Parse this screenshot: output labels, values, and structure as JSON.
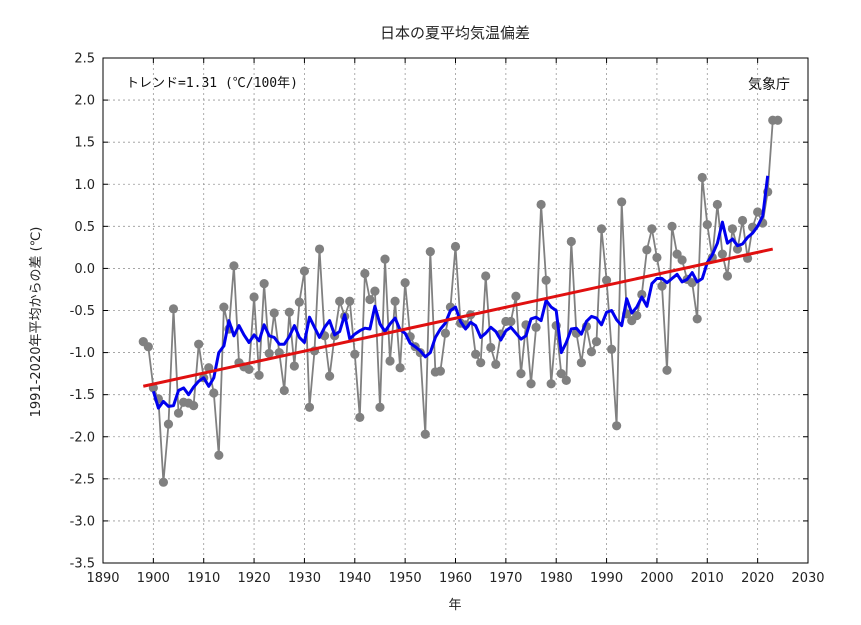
{
  "chart_data": {
    "type": "line",
    "title": "日本の夏平均気温偏差",
    "xlabel": "年",
    "ylabel": "1991-2020年平均からの差 (℃)",
    "annotation": "トレンド=1.31 (℃/100年)",
    "source": "気象庁",
    "xlim": [
      1890,
      2030
    ],
    "ylim": [
      -3.5,
      2.5
    ],
    "xticks": [
      1890,
      1900,
      1910,
      1920,
      1930,
      1940,
      1950,
      1960,
      1970,
      1980,
      1990,
      2000,
      2010,
      2020,
      2030
    ],
    "yticks": [
      -3.5,
      -3.0,
      -2.5,
      -2.0,
      -1.5,
      -1.0,
      -0.5,
      0.0,
      0.5,
      1.0,
      1.5,
      2.0,
      2.5
    ],
    "ytick_labels": [
      "-3.5",
      "-3.0",
      "-2.5",
      "-2.0",
      "-1.5",
      "-1.0",
      "-0.5",
      "0.0",
      "0.5",
      "1.0",
      "1.5",
      "2.0",
      "2.5"
    ],
    "grid": true,
    "colors": {
      "annual": "#808080",
      "moving_average": "#0000ee",
      "trend": "#e01010"
    },
    "series": [
      {
        "kind": "annual",
        "x": [
          1898,
          1899,
          1900,
          1901,
          1902,
          1903,
          1904,
          1905,
          1906,
          1907,
          1908,
          1909,
          1910,
          1911,
          1912,
          1913,
          1914,
          1915,
          1916,
          1917,
          1918,
          1919,
          1920,
          1921,
          1922,
          1923,
          1924,
          1925,
          1926,
          1927,
          1928,
          1929,
          1930,
          1931,
          1932,
          1933,
          1934,
          1935,
          1936,
          1937,
          1938,
          1939,
          1940,
          1941,
          1942,
          1943,
          1944,
          1945,
          1946,
          1947,
          1948,
          1949,
          1950,
          1951,
          1952,
          1953,
          1954,
          1955,
          1956,
          1957,
          1958,
          1959,
          1960,
          1961,
          1962,
          1963,
          1964,
          1965,
          1966,
          1967,
          1968,
          1969,
          1970,
          1971,
          1972,
          1973,
          1974,
          1975,
          1976,
          1977,
          1978,
          1979,
          1980,
          1981,
          1982,
          1983,
          1984,
          1985,
          1986,
          1987,
          1988,
          1989,
          1990,
          1991,
          1992,
          1993,
          1994,
          1995,
          1996,
          1997,
          1998,
          1999,
          2000,
          2001,
          2002,
          2003,
          2004,
          2005,
          2006,
          2007,
          2008,
          2009,
          2010,
          2011,
          2012,
          2013,
          2014,
          2015,
          2016,
          2017,
          2018,
          2019,
          2020,
          2021,
          2022,
          2023,
          2024
        ],
        "values": [
          -0.87,
          -0.93,
          -1.42,
          -1.55,
          -2.54,
          -1.85,
          -0.48,
          -1.72,
          -1.59,
          -1.6,
          -1.63,
          -0.9,
          -1.3,
          -1.18,
          -1.48,
          -2.22,
          -0.46,
          -0.72,
          0.03,
          -1.12,
          -1.17,
          -1.2,
          -0.34,
          -1.27,
          -0.18,
          -1.01,
          -0.53,
          -1.0,
          -1.45,
          -0.52,
          -1.16,
          -0.4,
          -0.03,
          -1.65,
          -0.98,
          0.23,
          -0.8,
          -1.28,
          -0.8,
          -0.39,
          -0.57,
          -0.39,
          -1.02,
          -1.77,
          -0.06,
          -0.37,
          -0.27,
          -1.65,
          0.11,
          -1.1,
          -0.39,
          -1.18,
          -0.17,
          -0.81,
          -0.93,
          -1.0,
          -1.97,
          0.2,
          -1.23,
          -1.22,
          -0.77,
          -0.46,
          0.26,
          -0.65,
          -0.67,
          -0.55,
          -1.02,
          -1.12,
          -0.09,
          -0.94,
          -1.14,
          -0.78,
          -0.63,
          -0.63,
          -0.33,
          -1.25,
          -0.67,
          -1.37,
          -0.7,
          0.76,
          -0.14,
          -1.37,
          -0.68,
          -1.25,
          -1.33,
          0.32,
          -0.77,
          -1.12,
          -0.69,
          -0.99,
          -0.87,
          0.47,
          -0.14,
          -0.96,
          -1.87,
          0.79,
          -0.54,
          -0.62,
          -0.56,
          -0.31,
          0.22,
          0.47,
          0.13,
          -0.21,
          -1.21,
          0.5,
          0.17,
          0.1,
          -0.13,
          -0.17,
          -0.6,
          1.08,
          0.52,
          0.13,
          0.76,
          0.17,
          -0.09,
          0.47,
          0.23,
          0.57,
          0.12,
          0.49,
          0.67,
          0.54,
          0.91,
          1.76,
          1.76
        ]
      },
      {
        "kind": "moving_average",
        "x": [
          1900,
          1901,
          1902,
          1903,
          1904,
          1905,
          1906,
          1907,
          1908,
          1909,
          1910,
          1911,
          1912,
          1913,
          1914,
          1915,
          1916,
          1917,
          1918,
          1919,
          1920,
          1921,
          1922,
          1923,
          1924,
          1925,
          1926,
          1927,
          1928,
          1929,
          1930,
          1931,
          1932,
          1933,
          1934,
          1935,
          1936,
          1937,
          1938,
          1939,
          1940,
          1941,
          1942,
          1943,
          1944,
          1945,
          1946,
          1947,
          1948,
          1949,
          1950,
          1951,
          1952,
          1953,
          1954,
          1955,
          1956,
          1957,
          1958,
          1959,
          1960,
          1961,
          1962,
          1963,
          1964,
          1965,
          1966,
          1967,
          1968,
          1969,
          1970,
          1971,
          1972,
          1973,
          1974,
          1975,
          1976,
          1977,
          1978,
          1979,
          1980,
          1981,
          1982,
          1983,
          1984,
          1985,
          1986,
          1987,
          1988,
          1989,
          1990,
          1991,
          1992,
          1993,
          1994,
          1995,
          1996,
          1997,
          1998,
          1999,
          2000,
          2001,
          2002,
          2003,
          2004,
          2005,
          2006,
          2007,
          2008,
          2009,
          2010,
          2011,
          2012,
          2013,
          2014,
          2015,
          2016,
          2017,
          2018,
          2019,
          2020,
          2021,
          2022
        ],
        "values": [
          -1.46,
          -1.66,
          -1.58,
          -1.64,
          -1.63,
          -1.45,
          -1.42,
          -1.5,
          -1.41,
          -1.34,
          -1.3,
          -1.4,
          -1.3,
          -1.0,
          -0.92,
          -0.62,
          -0.8,
          -0.68,
          -0.79,
          -0.88,
          -0.79,
          -0.86,
          -0.67,
          -0.8,
          -0.82,
          -0.9,
          -0.9,
          -0.81,
          -0.68,
          -0.82,
          -0.88,
          -0.58,
          -0.7,
          -0.82,
          -0.7,
          -0.62,
          -0.79,
          -0.75,
          -0.55,
          -0.84,
          -0.78,
          -0.74,
          -0.71,
          -0.72,
          -0.45,
          -0.66,
          -0.75,
          -0.66,
          -0.59,
          -0.73,
          -0.77,
          -0.89,
          -0.93,
          -0.98,
          -1.05,
          -1.0,
          -0.82,
          -0.72,
          -0.65,
          -0.5,
          -0.46,
          -0.63,
          -0.72,
          -0.64,
          -0.68,
          -0.82,
          -0.77,
          -0.7,
          -0.75,
          -0.85,
          -0.74,
          -0.7,
          -0.77,
          -0.84,
          -0.8,
          -0.6,
          -0.58,
          -0.62,
          -0.38,
          -0.46,
          -0.5,
          -1.0,
          -0.88,
          -0.72,
          -0.71,
          -0.78,
          -0.63,
          -0.57,
          -0.59,
          -0.67,
          -0.52,
          -0.5,
          -0.61,
          -0.68,
          -0.36,
          -0.53,
          -0.46,
          -0.34,
          -0.45,
          -0.18,
          -0.12,
          -0.12,
          -0.17,
          -0.12,
          -0.07,
          -0.16,
          -0.13,
          -0.05,
          -0.16,
          -0.12,
          0.07,
          0.16,
          0.3,
          0.55,
          0.3,
          0.35,
          0.27,
          0.29,
          0.37,
          0.42,
          0.5,
          0.62,
          1.1
        ]
      },
      {
        "kind": "trend",
        "x": [
          1898,
          2023
        ],
        "values": [
          -1.4,
          0.23
        ]
      }
    ]
  }
}
